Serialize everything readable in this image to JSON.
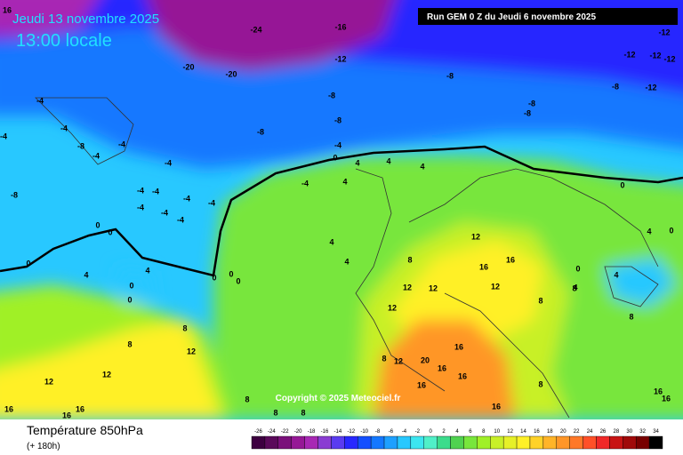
{
  "header": {
    "date": "Jeudi 13 novembre 2025",
    "time": "13:00 locale",
    "run": "Run GEM 0 Z du Jeudi 6 novembre 2025",
    "copyright": "Copyright © 2025 Meteociel.fr"
  },
  "footer": {
    "title": "Température 850hPa",
    "lead": "(+ 180h)"
  },
  "scale": {
    "ticks": [
      -26,
      -24,
      -22,
      -20,
      -18,
      -16,
      -14,
      -12,
      -10,
      -8,
      -6,
      -4,
      -2,
      0,
      2,
      4,
      6,
      8,
      10,
      12,
      14,
      16,
      18,
      20,
      22,
      24,
      26,
      28,
      30,
      32,
      34
    ],
    "colors": [
      "#3d0040",
      "#5a0a5a",
      "#7a107a",
      "#961896",
      "#a828b4",
      "#8a3cd2",
      "#5a3cf0",
      "#2828ff",
      "#1450ff",
      "#1478ff",
      "#1ea0ff",
      "#28c8ff",
      "#3ce6f0",
      "#50f0c8",
      "#3cdc8c",
      "#50d250",
      "#78e63c",
      "#a0f028",
      "#c8f028",
      "#e6f028",
      "#fff028",
      "#ffd228",
      "#ffb428",
      "#ff9628",
      "#ff7828",
      "#ff5028",
      "#f02828",
      "#c81414",
      "#a00a0a",
      "#780000",
      "#000000"
    ]
  },
  "contour_labels": [
    16,
    -24,
    -16,
    -20,
    -20,
    -12,
    -12,
    -12,
    -12,
    -12,
    -12,
    -8,
    -8,
    -8,
    -8,
    -8,
    -8,
    -8,
    -4,
    -4,
    -4,
    -8,
    -4,
    -4,
    -4,
    -4,
    -4,
    -4,
    -4,
    -4,
    -4,
    -4,
    -8,
    0,
    0,
    0,
    0,
    0,
    0,
    0,
    0,
    4,
    4,
    4,
    4,
    4,
    4,
    4,
    -4,
    -4,
    0,
    4,
    8,
    12,
    12,
    12,
    12,
    16,
    16,
    12,
    8,
    8,
    16,
    20,
    16,
    16,
    16,
    16,
    12,
    8,
    8,
    8,
    12,
    12,
    12,
    16,
    16,
    16,
    8,
    8,
    8,
    8,
    0,
    0,
    4,
    0,
    4,
    4,
    8,
    16,
    16
  ]
}
